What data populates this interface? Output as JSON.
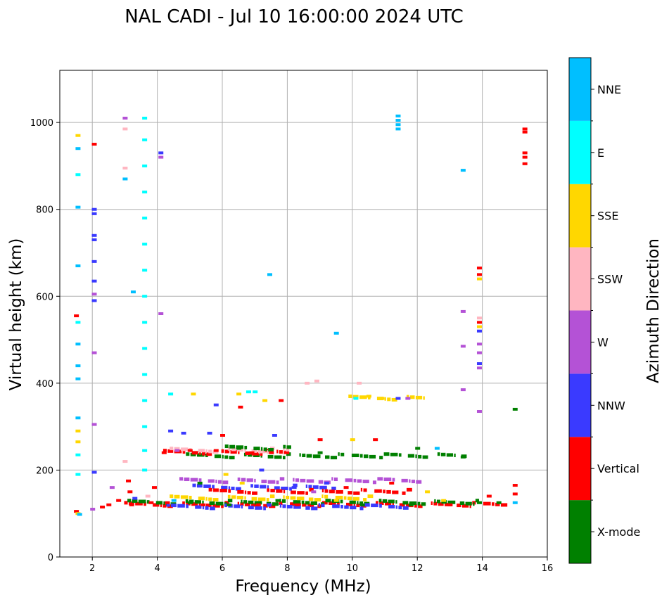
{
  "chart_data": {
    "type": "scatter",
    "title": "NAL CADI - Jul 10 16:00:00 2024 UTC",
    "xlabel": "Frequency (MHz)",
    "ylabel": "Virtual height (km)",
    "xlim": [
      1,
      16
    ],
    "ylim": [
      0,
      1120
    ],
    "xticks": [
      2,
      4,
      6,
      8,
      10,
      12,
      14,
      16
    ],
    "yticks": [
      0,
      200,
      400,
      600,
      800,
      1000
    ],
    "grid": true,
    "colorbar": {
      "label": "Azimuth Direction",
      "categories": [
        {
          "name": "X-mode",
          "color": "#008000"
        },
        {
          "name": "Vertical",
          "color": "#ff0000"
        },
        {
          "name": "NNW",
          "color": "#3a3aff"
        },
        {
          "name": "W",
          "color": "#b452d6"
        },
        {
          "name": "SSW",
          "color": "#ffb6c1"
        },
        {
          "name": "SSE",
          "color": "#ffd700"
        },
        {
          "name": "E",
          "color": "#00ffff"
        },
        {
          "name": "NNE",
          "color": "#00bfff"
        }
      ]
    },
    "points": [
      {
        "f": 1.5,
        "h": 105,
        "c": "Vertical"
      },
      {
        "f": 1.55,
        "h": 100,
        "c": "SSE"
      },
      {
        "f": 1.6,
        "h": 98,
        "c": "NNE"
      },
      {
        "f": 1.5,
        "h": 555,
        "c": "Vertical"
      },
      {
        "f": 1.55,
        "h": 540,
        "c": "E"
      },
      {
        "f": 1.55,
        "h": 970,
        "c": "SSE"
      },
      {
        "f": 1.55,
        "h": 940,
        "c": "NNE"
      },
      {
        "f": 1.55,
        "h": 880,
        "c": "E"
      },
      {
        "f": 1.55,
        "h": 805,
        "c": "NNE"
      },
      {
        "f": 1.55,
        "h": 670,
        "c": "NNE"
      },
      {
        "f": 1.55,
        "h": 490,
        "c": "NNE"
      },
      {
        "f": 1.55,
        "h": 440,
        "c": "NNE"
      },
      {
        "f": 1.55,
        "h": 410,
        "c": "NNE"
      },
      {
        "f": 1.55,
        "h": 320,
        "c": "NNE"
      },
      {
        "f": 1.55,
        "h": 290,
        "c": "SSE"
      },
      {
        "f": 1.55,
        "h": 265,
        "c": "SSE"
      },
      {
        "f": 1.55,
        "h": 235,
        "c": "E"
      },
      {
        "f": 1.55,
        "h": 190,
        "c": "E"
      },
      {
        "f": 2.05,
        "h": 950,
        "c": "Vertical"
      },
      {
        "f": 2.05,
        "h": 800,
        "c": "NNW"
      },
      {
        "f": 2.05,
        "h": 790,
        "c": "NNW"
      },
      {
        "f": 2.05,
        "h": 740,
        "c": "NNW"
      },
      {
        "f": 2.05,
        "h": 730,
        "c": "NNW"
      },
      {
        "f": 2.05,
        "h": 680,
        "c": "NNW"
      },
      {
        "f": 2.05,
        "h": 635,
        "c": "NNW"
      },
      {
        "f": 2.05,
        "h": 605,
        "c": "W"
      },
      {
        "f": 2.05,
        "h": 590,
        "c": "NNW"
      },
      {
        "f": 2.05,
        "h": 470,
        "c": "W"
      },
      {
        "f": 2.05,
        "h": 305,
        "c": "W"
      },
      {
        "f": 2.05,
        "h": 195,
        "c": "NNW"
      },
      {
        "f": 2.0,
        "h": 110,
        "c": "W"
      },
      {
        "f": 2.3,
        "h": 115,
        "c": "Vertical"
      },
      {
        "f": 2.5,
        "h": 120,
        "c": "Vertical"
      },
      {
        "f": 2.6,
        "h": 160,
        "c": "W"
      },
      {
        "f": 2.8,
        "h": 130,
        "c": "Vertical"
      },
      {
        "f": 3.0,
        "h": 1010,
        "c": "W"
      },
      {
        "f": 3.0,
        "h": 985,
        "c": "SSW"
      },
      {
        "f": 3.0,
        "h": 895,
        "c": "SSW"
      },
      {
        "f": 3.0,
        "h": 870,
        "c": "NNE"
      },
      {
        "f": 3.25,
        "h": 610,
        "c": "NNE"
      },
      {
        "f": 3.0,
        "h": 220,
        "c": "SSW"
      },
      {
        "f": 3.1,
        "h": 175,
        "c": "Vertical"
      },
      {
        "f": 3.15,
        "h": 150,
        "c": "Vertical"
      },
      {
        "f": 3.2,
        "h": 120,
        "c": "Vertical"
      },
      {
        "f": 3.3,
        "h": 135,
        "c": "NNW"
      },
      {
        "f": 3.6,
        "h": 1010,
        "c": "E"
      },
      {
        "f": 3.6,
        "h": 960,
        "c": "E"
      },
      {
        "f": 3.6,
        "h": 900,
        "c": "E"
      },
      {
        "f": 3.6,
        "h": 840,
        "c": "E"
      },
      {
        "f": 3.6,
        "h": 780,
        "c": "E"
      },
      {
        "f": 3.6,
        "h": 720,
        "c": "E"
      },
      {
        "f": 3.6,
        "h": 660,
        "c": "E"
      },
      {
        "f": 3.6,
        "h": 600,
        "c": "E"
      },
      {
        "f": 3.6,
        "h": 540,
        "c": "E"
      },
      {
        "f": 3.6,
        "h": 480,
        "c": "E"
      },
      {
        "f": 3.6,
        "h": 420,
        "c": "E"
      },
      {
        "f": 3.6,
        "h": 360,
        "c": "E"
      },
      {
        "f": 3.6,
        "h": 300,
        "c": "E"
      },
      {
        "f": 3.6,
        "h": 245,
        "c": "E"
      },
      {
        "f": 3.6,
        "h": 200,
        "c": "E"
      },
      {
        "f": 3.7,
        "h": 140,
        "c": "SSW"
      },
      {
        "f": 3.8,
        "h": 125,
        "c": "Vertical"
      },
      {
        "f": 3.9,
        "h": 160,
        "c": "Vertical"
      },
      {
        "f": 4.1,
        "h": 930,
        "c": "NNW"
      },
      {
        "f": 4.1,
        "h": 920,
        "c": "W"
      },
      {
        "f": 4.1,
        "h": 560,
        "c": "W"
      },
      {
        "f": 4.2,
        "h": 240,
        "c": "Vertical"
      },
      {
        "f": 4.4,
        "h": 375,
        "c": "E"
      },
      {
        "f": 4.4,
        "h": 290,
        "c": "NNW"
      },
      {
        "f": 4.3,
        "h": 125,
        "c": "Vertical"
      },
      {
        "f": 4.5,
        "h": 130,
        "c": "NNE"
      },
      {
        "f": 4.6,
        "h": 245,
        "c": "W"
      },
      {
        "f": 4.8,
        "h": 285,
        "c": "NNW"
      },
      {
        "f": 5.0,
        "h": 245,
        "c": "Vertical"
      },
      {
        "f": 5.0,
        "h": 125,
        "c": "X-mode"
      },
      {
        "f": 5.1,
        "h": 375,
        "c": "SSE"
      },
      {
        "f": 5.3,
        "h": 170,
        "c": "X-mode"
      },
      {
        "f": 5.4,
        "h": 120,
        "c": "Vertical"
      },
      {
        "f": 5.6,
        "h": 285,
        "c": "NNW"
      },
      {
        "f": 5.8,
        "h": 350,
        "c": "NNW"
      },
      {
        "f": 5.8,
        "h": 245,
        "c": "Vertical"
      },
      {
        "f": 6.0,
        "h": 280,
        "c": "Vertical"
      },
      {
        "f": 6.1,
        "h": 190,
        "c": "SSE"
      },
      {
        "f": 6.2,
        "h": 120,
        "c": "X-mode"
      },
      {
        "f": 6.5,
        "h": 375,
        "c": "SSE"
      },
      {
        "f": 6.5,
        "h": 250,
        "c": "X-mode"
      },
      {
        "f": 6.55,
        "h": 345,
        "c": "Vertical"
      },
      {
        "f": 6.6,
        "h": 170,
        "c": "SSE"
      },
      {
        "f": 6.8,
        "h": 380,
        "c": "E"
      },
      {
        "f": 6.9,
        "h": 240,
        "c": "Vertical"
      },
      {
        "f": 7.0,
        "h": 380,
        "c": "E"
      },
      {
        "f": 7.1,
        "h": 120,
        "c": "Vertical"
      },
      {
        "f": 7.2,
        "h": 200,
        "c": "NNW"
      },
      {
        "f": 7.3,
        "h": 360,
        "c": "SSE"
      },
      {
        "f": 7.45,
        "h": 650,
        "c": "NNE"
      },
      {
        "f": 7.6,
        "h": 280,
        "c": "NNW"
      },
      {
        "f": 7.5,
        "h": 240,
        "c": "Vertical"
      },
      {
        "f": 7.7,
        "h": 130,
        "c": "X-mode"
      },
      {
        "f": 7.8,
        "h": 360,
        "c": "Vertical"
      },
      {
        "f": 8.2,
        "h": 160,
        "c": "NNW"
      },
      {
        "f": 8.3,
        "h": 120,
        "c": "Vertical"
      },
      {
        "f": 8.6,
        "h": 400,
        "c": "SSW"
      },
      {
        "f": 8.8,
        "h": 150,
        "c": "W"
      },
      {
        "f": 8.9,
        "h": 405,
        "c": "SSW"
      },
      {
        "f": 9.0,
        "h": 270,
        "c": "Vertical"
      },
      {
        "f": 9.0,
        "h": 240,
        "c": "X-mode"
      },
      {
        "f": 9.2,
        "h": 170,
        "c": "NNW"
      },
      {
        "f": 9.5,
        "h": 515,
        "c": "NNE"
      },
      {
        "f": 9.5,
        "h": 130,
        "c": "SSE"
      },
      {
        "f": 9.8,
        "h": 160,
        "c": "Vertical"
      },
      {
        "f": 10.0,
        "h": 270,
        "c": "SSE"
      },
      {
        "f": 10.1,
        "h": 365,
        "c": "E"
      },
      {
        "f": 10.2,
        "h": 400,
        "c": "SSW"
      },
      {
        "f": 10.3,
        "h": 120,
        "c": "X-mode"
      },
      {
        "f": 10.5,
        "h": 370,
        "c": "SSE"
      },
      {
        "f": 10.7,
        "h": 270,
        "c": "Vertical"
      },
      {
        "f": 10.9,
        "h": 365,
        "c": "SSE"
      },
      {
        "f": 11.2,
        "h": 170,
        "c": "Vertical"
      },
      {
        "f": 11.4,
        "h": 1015,
        "c": "NNE"
      },
      {
        "f": 11.4,
        "h": 1005,
        "c": "NNE"
      },
      {
        "f": 11.4,
        "h": 995,
        "c": "NNE"
      },
      {
        "f": 11.4,
        "h": 985,
        "c": "NNE"
      },
      {
        "f": 11.4,
        "h": 365,
        "c": "NNW"
      },
      {
        "f": 11.7,
        "h": 365,
        "c": "W"
      },
      {
        "f": 11.8,
        "h": 120,
        "c": "X-mode"
      },
      {
        "f": 12.0,
        "h": 250,
        "c": "X-mode"
      },
      {
        "f": 12.3,
        "h": 150,
        "c": "SSE"
      },
      {
        "f": 12.6,
        "h": 250,
        "c": "NNE"
      },
      {
        "f": 12.8,
        "h": 130,
        "c": "SSE"
      },
      {
        "f": 13.0,
        "h": 120,
        "c": "Vertical"
      },
      {
        "f": 13.4,
        "h": 890,
        "c": "NNE"
      },
      {
        "f": 13.4,
        "h": 565,
        "c": "W"
      },
      {
        "f": 13.4,
        "h": 485,
        "c": "W"
      },
      {
        "f": 13.4,
        "h": 385,
        "c": "W"
      },
      {
        "f": 13.4,
        "h": 230,
        "c": "X-mode"
      },
      {
        "f": 13.9,
        "h": 665,
        "c": "Vertical"
      },
      {
        "f": 13.9,
        "h": 650,
        "c": "Vertical"
      },
      {
        "f": 13.9,
        "h": 640,
        "c": "SSE"
      },
      {
        "f": 13.9,
        "h": 550,
        "c": "SSW"
      },
      {
        "f": 13.9,
        "h": 540,
        "c": "Vertical"
      },
      {
        "f": 13.9,
        "h": 530,
        "c": "SSE"
      },
      {
        "f": 13.9,
        "h": 520,
        "c": "NNW"
      },
      {
        "f": 13.9,
        "h": 490,
        "c": "W"
      },
      {
        "f": 13.9,
        "h": 470,
        "c": "W"
      },
      {
        "f": 13.9,
        "h": 445,
        "c": "NNW"
      },
      {
        "f": 13.9,
        "h": 435,
        "c": "W"
      },
      {
        "f": 13.9,
        "h": 335,
        "c": "W"
      },
      {
        "f": 13.9,
        "h": 125,
        "c": "X-mode"
      },
      {
        "f": 14.2,
        "h": 140,
        "c": "Vertical"
      },
      {
        "f": 14.5,
        "h": 125,
        "c": "X-mode"
      },
      {
        "f": 15.0,
        "h": 340,
        "c": "X-mode"
      },
      {
        "f": 15.3,
        "h": 985,
        "c": "Vertical"
      },
      {
        "f": 15.3,
        "h": 978,
        "c": "Vertical"
      },
      {
        "f": 15.3,
        "h": 930,
        "c": "Vertical"
      },
      {
        "f": 15.3,
        "h": 920,
        "c": "Vertical"
      },
      {
        "f": 15.3,
        "h": 905,
        "c": "Vertical"
      },
      {
        "f": 15.0,
        "h": 165,
        "c": "Vertical"
      },
      {
        "f": 15.0,
        "h": 145,
        "c": "Vertical"
      },
      {
        "f": 15.0,
        "h": 125,
        "c": "NNE"
      }
    ],
    "bands": [
      {
        "f0": 2.9,
        "f1": 14.6,
        "h": 120,
        "c": "Vertical"
      },
      {
        "f0": 3.0,
        "f1": 14.0,
        "h": 125,
        "c": "X-mode"
      },
      {
        "f0": 4.2,
        "f1": 12.0,
        "h": 115,
        "c": "NNW"
      },
      {
        "f0": 4.3,
        "f1": 10.5,
        "h": 135,
        "c": "SSE"
      },
      {
        "f0": 4.8,
        "f1": 13.5,
        "h": 232,
        "c": "X-mode"
      },
      {
        "f0": 4.1,
        "f1": 8.0,
        "h": 240,
        "c": "Vertical"
      },
      {
        "f0": 4.3,
        "f1": 8.0,
        "h": 245,
        "c": "SSW"
      },
      {
        "f0": 6.0,
        "f1": 8.0,
        "h": 250,
        "c": "X-mode"
      },
      {
        "f0": 5.0,
        "f1": 9.5,
        "h": 160,
        "c": "NNW"
      },
      {
        "f0": 4.6,
        "f1": 12.0,
        "h": 175,
        "c": "W"
      },
      {
        "f0": 5.5,
        "f1": 11.8,
        "h": 150,
        "c": "Vertical"
      },
      {
        "f0": 9.8,
        "f1": 12.2,
        "h": 365,
        "c": "SSE"
      }
    ]
  }
}
